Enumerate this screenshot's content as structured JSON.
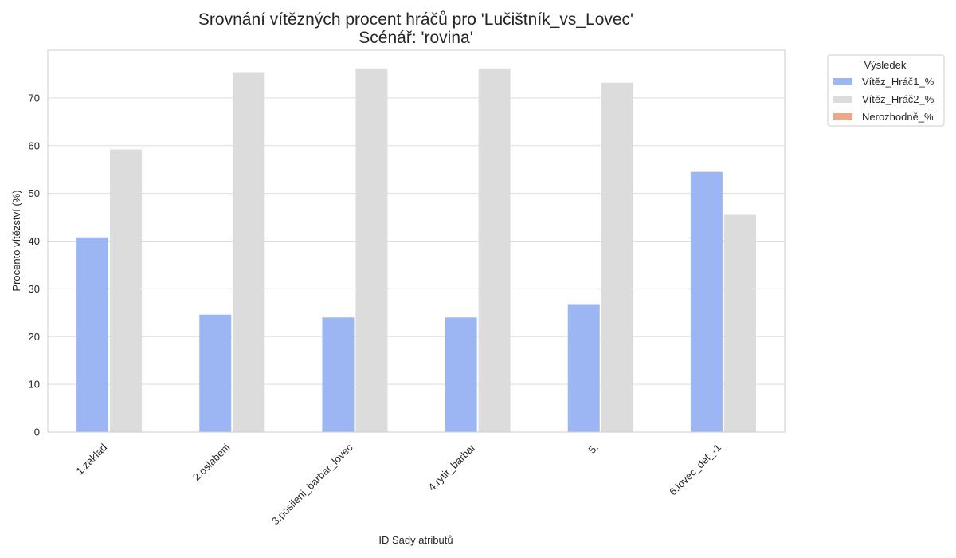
{
  "chart_data": {
    "type": "bar",
    "title": "Srovnání vítězných procent hráčů pro 'Lučištník_vs_Lovec'",
    "subtitle": "Scénář: 'rovina'",
    "xlabel": "ID Sady atributů",
    "ylabel": "Procento vítězství (%)",
    "ylim": [
      0,
      80
    ],
    "yticks": [
      0,
      10,
      20,
      30,
      40,
      50,
      60,
      70
    ],
    "grid": true,
    "legend_placement": "outside-top-right",
    "legend_title": "Výsledek",
    "categories": [
      "1.zaklad",
      "2.oslabeni",
      "3.posileni_barbar_lovec",
      "4.rytir_barbar",
      "5.",
      "6.lovec_def_-1"
    ],
    "series": [
      {
        "name": "Vítěz_Hráč1_%",
        "color": "#9bb6f2",
        "values": [
          40.8,
          24.6,
          24.0,
          24.0,
          26.8,
          54.5
        ]
      },
      {
        "name": "Vítěz_Hráč2_%",
        "color": "#dcdcdc",
        "values": [
          59.2,
          75.4,
          76.2,
          76.2,
          73.2,
          45.5
        ]
      },
      {
        "name": "Nerozhodně_%",
        "color": "#eca68a",
        "values": [
          0,
          0,
          0,
          0,
          0,
          0
        ]
      }
    ]
  }
}
